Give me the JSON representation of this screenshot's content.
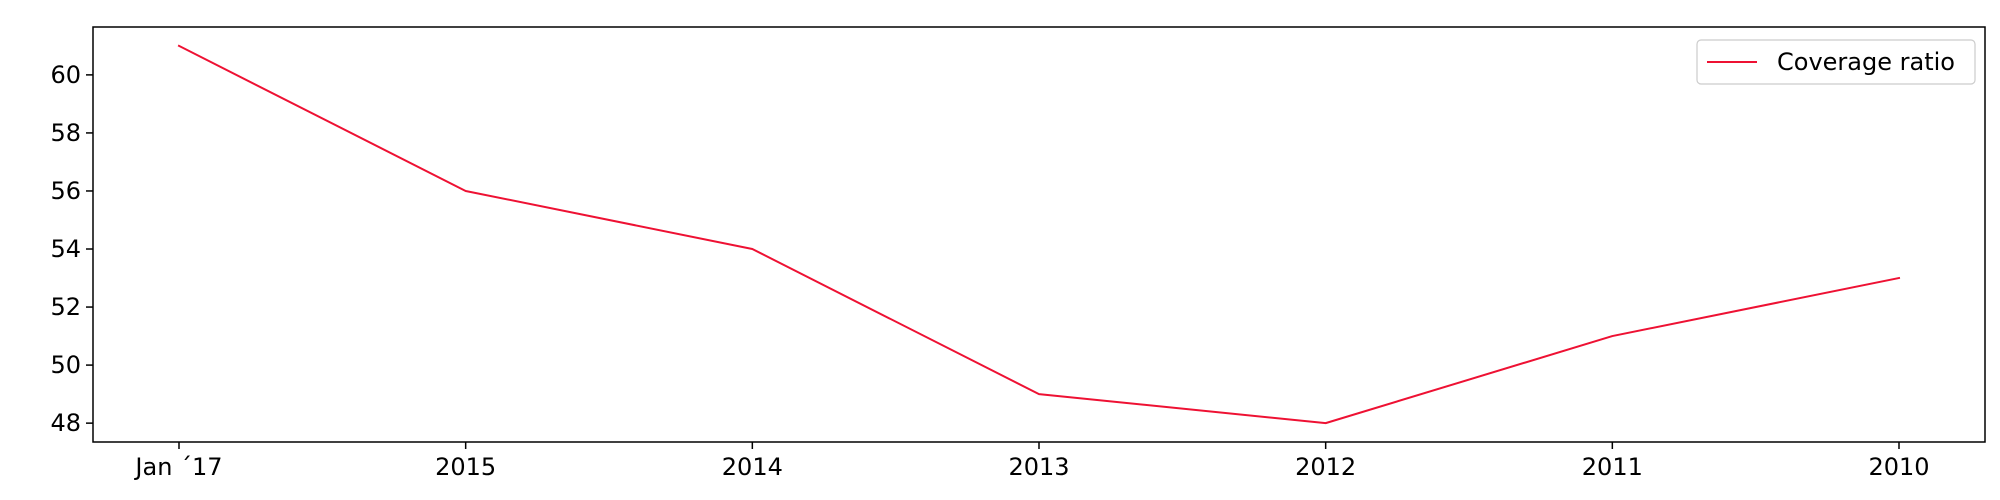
{
  "chart_data": {
    "type": "line",
    "categories": [
      "Jan ´17",
      "2015",
      "2014",
      "2013",
      "2012",
      "2011",
      "2010"
    ],
    "series": [
      {
        "name": "Coverage ratio",
        "values": [
          61,
          56,
          54,
          49,
          48,
          51,
          53
        ],
        "color": "#ee1133"
      }
    ],
    "title": "",
    "xlabel": "",
    "ylabel": "",
    "ylim": [
      47.35,
      61.65
    ],
    "yticks": [
      48,
      50,
      52,
      54,
      56,
      58,
      60
    ],
    "grid": false,
    "legend": {
      "position": "top-right"
    }
  }
}
